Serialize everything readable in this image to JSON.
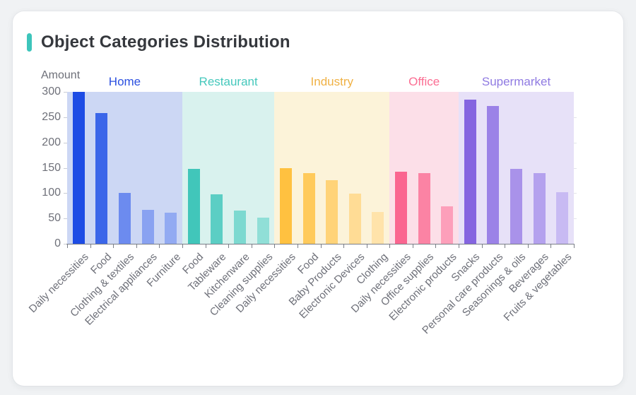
{
  "card": {
    "title": "Object Categories Distribution",
    "title_accent_color": "#3dc5bb"
  },
  "chart_data": {
    "type": "bar",
    "title": "Object Categories Distribution",
    "xlabel": "",
    "ylabel": "Amount",
    "ylim": [
      0,
      300
    ],
    "yticks": [
      0,
      50,
      100,
      150,
      200,
      250,
      300
    ],
    "grid": false,
    "legend_position": "top (group labels above plot)",
    "axis_color": "#7b7f88",
    "tick_label_color": "#6e7079",
    "groups": [
      {
        "name": "Home",
        "label_color": "#2b50e0",
        "band_color": "#ccd7f4",
        "categories": [
          "Daily necessities",
          "Food",
          "Clothing & textiles",
          "Electrical appliances",
          "Furniture"
        ],
        "values": [
          300,
          258,
          101,
          67,
          62
        ],
        "bar_colors": [
          "#1d4ce5",
          "#3b66e9",
          "#6c8bef",
          "#89a2f1",
          "#92aaf2"
        ]
      },
      {
        "name": "Restaurant",
        "label_color": "#45c8bc",
        "band_color": "#d9f2ee",
        "categories": [
          "Food",
          "Tableware",
          "Kitchenware",
          "Cleaning supplies"
        ],
        "values": [
          148,
          97,
          65,
          51
        ],
        "bar_colors": [
          "#41c6ba",
          "#5bcec4",
          "#7cd9d0",
          "#90dfd7"
        ]
      },
      {
        "name": "Industry",
        "label_color": "#f0b144",
        "band_color": "#fcf3d9",
        "categories": [
          "Daily necessities",
          "Food",
          "Baby Products",
          "Electronic Devices",
          "Clothing"
        ],
        "values": [
          150,
          139,
          126,
          99,
          63
        ],
        "bar_colors": [
          "#ffc140",
          "#ffca5b",
          "#ffd378",
          "#ffdc95",
          "#ffe3aa"
        ]
      },
      {
        "name": "Office",
        "label_color": "#fb6e93",
        "band_color": "#fcdfe8",
        "categories": [
          "Daily necessities",
          "Office supplies",
          "Electronic products"
        ],
        "values": [
          142,
          139,
          74
        ],
        "bar_colors": [
          "#fa6590",
          "#fb83a4",
          "#fd9fba"
        ]
      },
      {
        "name": "Supermarket",
        "label_color": "#8f7ae2",
        "band_color": "#e7e1f8",
        "categories": [
          "Snacks",
          "Personal care products",
          "Seasonings & oils",
          "Beverages",
          "Fruits & vegetables"
        ],
        "values": [
          285,
          272,
          148,
          140,
          102
        ],
        "bar_colors": [
          "#8565e0",
          "#9b82e7",
          "#a992ea",
          "#b4a1ee",
          "#c8baf3"
        ]
      }
    ]
  }
}
